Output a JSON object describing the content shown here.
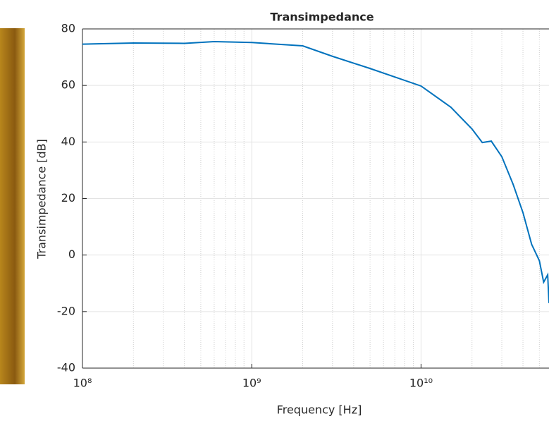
{
  "chart_data": {
    "type": "line",
    "title": "Transimpedance",
    "x_label": "Frequency [Hz]",
    "y_label": "Transimpedance [dB]",
    "x_scale": "log",
    "x": [
      100000000,
      200000000,
      400000000,
      600000000,
      1000000000,
      2000000000,
      3000000000,
      5000000000,
      10000000000,
      15000000000,
      20000000000,
      23000000000,
      26000000000,
      30000000000,
      35000000000,
      40000000000,
      45000000000,
      50000000000,
      53000000000,
      56000000000,
      57000000000
    ],
    "series": [
      {
        "name": "Transimpedance",
        "color": "#0072bd",
        "values": [
          74.6,
          75.0,
          74.9,
          75.5,
          75.2,
          74.0,
          70.3,
          66.0,
          59.8,
          52.3,
          44.6,
          39.8,
          40.3,
          34.8,
          25.0,
          15.0,
          3.8,
          -2.0,
          -9.6,
          -7.0,
          -17.0
        ]
      }
    ],
    "xlim": [
      100000000,
      57000000000
    ],
    "xticks": [
      {
        "value": 100000000,
        "label": "10⁸"
      },
      {
        "value": 1000000000,
        "label": "10⁹"
      },
      {
        "value": 10000000000,
        "label": "10¹⁰"
      }
    ],
    "ylim": [
      -40,
      80
    ],
    "yticks": [
      -40,
      -20,
      0,
      20,
      40,
      60,
      80
    ],
    "grid": true,
    "minor_grid": true
  }
}
